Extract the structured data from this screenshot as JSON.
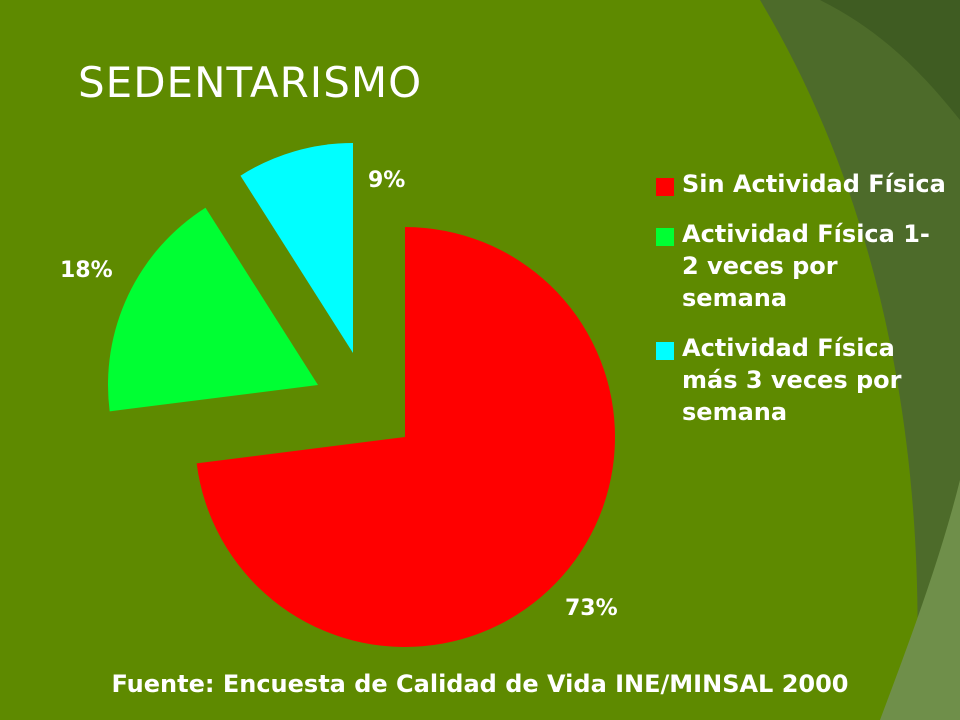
{
  "slide": {
    "title": "SEDENTARISMO",
    "source": "Fuente: Encuesta de Calidad de Vida INE/MINSAL 2000"
  },
  "colors": {
    "background": "#5e8a00",
    "sin_actividad": "#ff0000",
    "actividad_1_2": "#00ff33",
    "actividad_3": "#00ffff",
    "text": "#ffffff"
  },
  "chart_data": {
    "type": "pie",
    "title": "SEDENTARISMO",
    "legend_position": "right",
    "slices": [
      {
        "label": "Sin Actividad Física",
        "value": 73,
        "display": "73%",
        "color": "#ff0000"
      },
      {
        "label": "Actividad Física 1-2 veces por semana",
        "value": 18,
        "display": "18%",
        "color": "#00ff33"
      },
      {
        "label": "Actividad Física más 3 veces por semana",
        "value": 9,
        "display": "9%",
        "color": "#00ffff"
      }
    ]
  }
}
